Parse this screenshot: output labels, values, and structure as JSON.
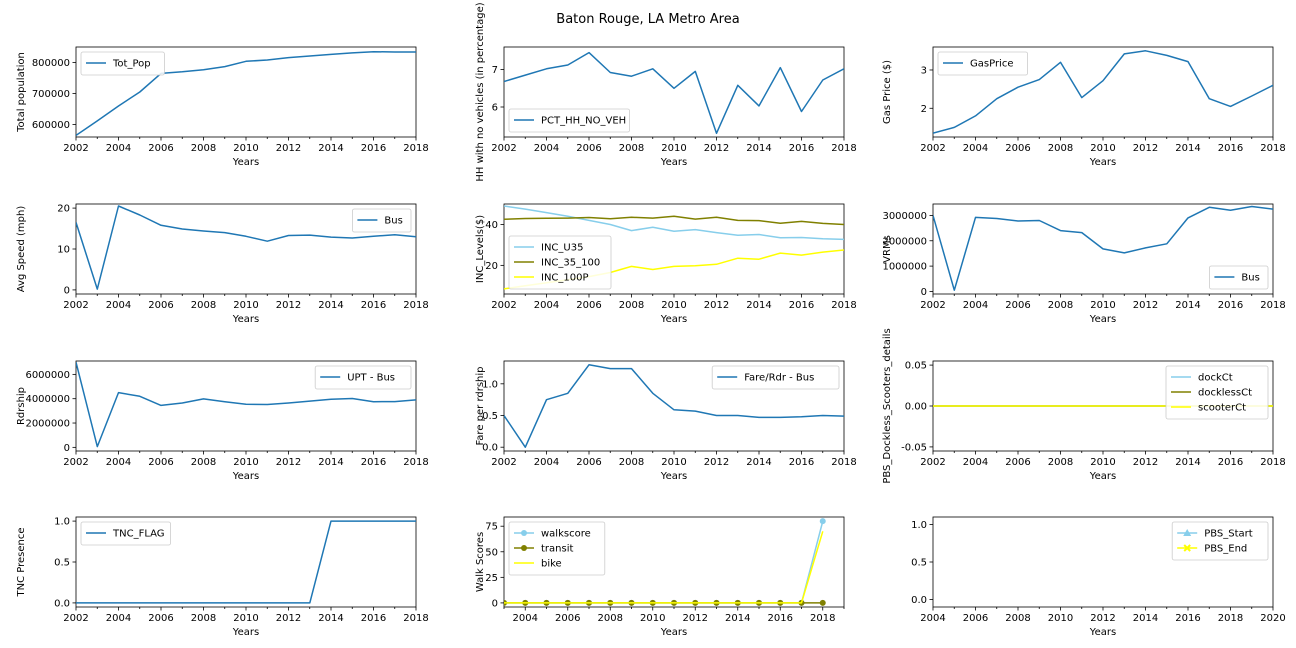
{
  "title": "Baton Rouge, LA Metro Area",
  "colors": {
    "blue": "#1f77b4",
    "skyblue": "#87ceeb",
    "olive": "#808000",
    "yellow": "#ffff00"
  },
  "chart_data": [
    {
      "type": "line",
      "xlabel": "Years",
      "ylabel": "Total population",
      "xlim": [
        2002,
        2018
      ],
      "ylim": [
        560000,
        850000
      ],
      "xticks": [
        2002,
        2004,
        2006,
        2008,
        2010,
        2012,
        2014,
        2016,
        2018
      ],
      "yticks": [
        600000,
        700000,
        800000
      ],
      "legend_position": "upper-left",
      "series": [
        {
          "name": "Tot_Pop",
          "color": "blue",
          "x": [
            2002,
            2003,
            2004,
            2005,
            2006,
            2007,
            2008,
            2009,
            2010,
            2011,
            2012,
            2013,
            2014,
            2015,
            2016,
            2017,
            2018
          ],
          "y": [
            565000,
            612000,
            660000,
            705000,
            765000,
            770000,
            777000,
            787000,
            804000,
            808000,
            816000,
            821000,
            826000,
            831000,
            835000,
            834000,
            834000
          ]
        }
      ]
    },
    {
      "type": "line",
      "xlabel": "Years",
      "ylabel": "HH with no vehicles (in percentage)",
      "xlim": [
        2002,
        2018
      ],
      "ylim": [
        5.2,
        7.6
      ],
      "xticks": [
        2002,
        2004,
        2006,
        2008,
        2010,
        2012,
        2014,
        2016,
        2018
      ],
      "yticks": [
        6,
        7
      ],
      "legend_position": "lower-left",
      "series": [
        {
          "name": "PCT_HH_NO_VEH",
          "color": "blue",
          "x": [
            2002,
            2003,
            2004,
            2005,
            2006,
            2007,
            2008,
            2009,
            2010,
            2011,
            2012,
            2013,
            2014,
            2015,
            2016,
            2017,
            2018
          ],
          "y": [
            6.68,
            6.85,
            7.02,
            7.12,
            7.45,
            6.92,
            6.82,
            7.02,
            6.5,
            6.95,
            5.3,
            6.58,
            6.03,
            7.05,
            5.88,
            6.72,
            7.02
          ]
        }
      ]
    },
    {
      "type": "line",
      "xlabel": "Years",
      "ylabel": "Gas Price ($)",
      "xlim": [
        2002,
        2018
      ],
      "ylim": [
        1.25,
        3.6
      ],
      "xticks": [
        2002,
        2004,
        2006,
        2008,
        2010,
        2012,
        2014,
        2016,
        2018
      ],
      "yticks": [
        2,
        3
      ],
      "legend_position": "upper-left",
      "series": [
        {
          "name": "GasPrice",
          "color": "blue",
          "x": [
            2002,
            2003,
            2004,
            2005,
            2006,
            2007,
            2008,
            2009,
            2010,
            2011,
            2012,
            2013,
            2014,
            2015,
            2016,
            2017,
            2018
          ],
          "y": [
            1.35,
            1.5,
            1.8,
            2.25,
            2.55,
            2.75,
            3.2,
            2.28,
            2.72,
            3.42,
            3.5,
            3.38,
            3.22,
            2.25,
            2.05,
            2.32,
            2.6
          ]
        }
      ]
    },
    {
      "type": "line",
      "xlabel": "Years",
      "ylabel": "Avg Speed (mph)",
      "xlim": [
        2002,
        2018
      ],
      "ylim": [
        -1,
        21
      ],
      "xticks": [
        2002,
        2004,
        2006,
        2008,
        2010,
        2012,
        2014,
        2016,
        2018
      ],
      "yticks": [
        0,
        10,
        20
      ],
      "legend_position": "upper-right",
      "series": [
        {
          "name": "Bus",
          "color": "blue",
          "x": [
            2002,
            2003,
            2004,
            2005,
            2006,
            2007,
            2008,
            2009,
            2010,
            2011,
            2012,
            2013,
            2014,
            2015,
            2016,
            2017,
            2018
          ],
          "y": [
            16.5,
            0.2,
            20.5,
            18.3,
            15.8,
            14.9,
            14.4,
            14.0,
            13.1,
            11.9,
            13.3,
            13.4,
            12.9,
            12.7,
            13.1,
            13.5,
            13.0
          ]
        }
      ]
    },
    {
      "type": "line",
      "xlabel": "Years",
      "ylabel": "INC_Levels($)",
      "xlim": [
        2002,
        2018
      ],
      "ylim": [
        6,
        50
      ],
      "xticks": [
        2002,
        2004,
        2006,
        2008,
        2010,
        2012,
        2014,
        2016,
        2018
      ],
      "yticks": [
        20,
        40
      ],
      "legend_position": "lower-left",
      "series": [
        {
          "name": "INC_U35",
          "color": "skyblue",
          "x": [
            2002,
            2003,
            2004,
            2005,
            2006,
            2007,
            2008,
            2009,
            2010,
            2011,
            2012,
            2013,
            2014,
            2015,
            2016,
            2017,
            2018
          ],
          "y": [
            49,
            47.5,
            45.8,
            44,
            42,
            40,
            37,
            38.6,
            36.7,
            37.5,
            36,
            34.7,
            35.1,
            33.5,
            33.6,
            33,
            32.7
          ]
        },
        {
          "name": "INC_35_100",
          "color": "olive",
          "x": [
            2002,
            2003,
            2004,
            2005,
            2006,
            2007,
            2008,
            2009,
            2010,
            2011,
            2012,
            2013,
            2014,
            2015,
            2016,
            2017,
            2018
          ],
          "y": [
            42.5,
            42.9,
            43,
            43.1,
            43.4,
            42.8,
            43.5,
            43.1,
            44,
            42.6,
            43.5,
            42,
            41.9,
            40.6,
            41.5,
            40.5,
            40
          ]
        },
        {
          "name": "INC_100P",
          "color": "yellow",
          "x": [
            2002,
            2003,
            2004,
            2005,
            2006,
            2007,
            2008,
            2009,
            2010,
            2011,
            2012,
            2013,
            2014,
            2015,
            2016,
            2017,
            2018
          ],
          "y": [
            8.5,
            10,
            11.5,
            13,
            14.5,
            16.5,
            19.5,
            18,
            19.5,
            19.8,
            20.5,
            23.5,
            23,
            26,
            25,
            26.5,
            27.5
          ]
        }
      ]
    },
    {
      "type": "line",
      "xlabel": "Years",
      "ylabel": "VRMs",
      "xlim": [
        2002,
        2018
      ],
      "ylim": [
        -100000,
        3450000
      ],
      "xticks": [
        2002,
        2004,
        2006,
        2008,
        2010,
        2012,
        2014,
        2016,
        2018
      ],
      "yticks": [
        0,
        1000000,
        2000000,
        3000000
      ],
      "legend_position": "lower-right",
      "series": [
        {
          "name": "Bus",
          "color": "blue",
          "x": [
            2002,
            2003,
            2004,
            2005,
            2006,
            2007,
            2008,
            2009,
            2010,
            2011,
            2012,
            2013,
            2014,
            2015,
            2016,
            2017,
            2018
          ],
          "y": [
            3000000,
            50000,
            2920000,
            2880000,
            2780000,
            2800000,
            2400000,
            2320000,
            1680000,
            1520000,
            1720000,
            1880000,
            2900000,
            3320000,
            3200000,
            3350000,
            3250000
          ]
        }
      ]
    },
    {
      "type": "line",
      "xlabel": "Years",
      "ylabel": "Rdrship",
      "xlim": [
        2002,
        2018
      ],
      "ylim": [
        -300000,
        7100000
      ],
      "xticks": [
        2002,
        2004,
        2006,
        2008,
        2010,
        2012,
        2014,
        2016,
        2018
      ],
      "yticks": [
        0,
        2000000,
        4000000,
        6000000
      ],
      "legend_position": "upper-right",
      "series": [
        {
          "name": "UPT - Bus",
          "color": "blue",
          "x": [
            2002,
            2003,
            2004,
            2005,
            2006,
            2007,
            2008,
            2009,
            2010,
            2011,
            2012,
            2013,
            2014,
            2015,
            2016,
            2017,
            2018
          ],
          "y": [
            7000000,
            60000,
            4500000,
            4200000,
            3450000,
            3650000,
            3980000,
            3750000,
            3550000,
            3520000,
            3650000,
            3800000,
            3950000,
            4020000,
            3750000,
            3760000,
            3900000
          ]
        }
      ]
    },
    {
      "type": "line",
      "xlabel": "Years",
      "ylabel": "Fare per rdrship",
      "xlim": [
        2002,
        2018
      ],
      "ylim": [
        -0.06,
        1.36
      ],
      "xticks": [
        2002,
        2004,
        2006,
        2008,
        2010,
        2012,
        2014,
        2016,
        2018
      ],
      "yticks": [
        0.0,
        0.5,
        1.0
      ],
      "legend_position": "upper-right",
      "series": [
        {
          "name": "Fare/Rdr - Bus",
          "color": "blue",
          "x": [
            2002,
            2003,
            2004,
            2005,
            2006,
            2007,
            2008,
            2009,
            2010,
            2011,
            2012,
            2013,
            2014,
            2015,
            2016,
            2017,
            2018
          ],
          "y": [
            0.5,
            0.0,
            0.75,
            0.85,
            1.3,
            1.24,
            1.24,
            0.85,
            0.59,
            0.57,
            0.5,
            0.5,
            0.47,
            0.47,
            0.48,
            0.5,
            0.49
          ]
        }
      ]
    },
    {
      "type": "line",
      "xlabel": "Years",
      "ylabel": "PBS_Dockless_Scooters_details",
      "xlim": [
        2002,
        2018
      ],
      "ylim": [
        -0.055,
        0.055
      ],
      "xticks": [
        2002,
        2004,
        2006,
        2008,
        2010,
        2012,
        2014,
        2016,
        2018
      ],
      "yticks": [
        -0.05,
        0.0,
        0.05
      ],
      "legend_position": "upper-right",
      "series": [
        {
          "name": "dockCt",
          "color": "skyblue",
          "x": [
            2002,
            2003,
            2004,
            2005,
            2006,
            2007,
            2008,
            2009,
            2010,
            2011,
            2012,
            2013,
            2014,
            2015,
            2016,
            2017,
            2018
          ],
          "y": [
            0,
            0,
            0,
            0,
            0,
            0,
            0,
            0,
            0,
            0,
            0,
            0,
            0,
            0,
            0,
            0,
            0
          ]
        },
        {
          "name": "docklessCt",
          "color": "olive",
          "x": [
            2002,
            2003,
            2004,
            2005,
            2006,
            2007,
            2008,
            2009,
            2010,
            2011,
            2012,
            2013,
            2014,
            2015,
            2016,
            2017,
            2018
          ],
          "y": [
            0,
            0,
            0,
            0,
            0,
            0,
            0,
            0,
            0,
            0,
            0,
            0,
            0,
            0,
            0,
            0,
            0
          ]
        },
        {
          "name": "scooterCt",
          "color": "yellow",
          "x": [
            2002,
            2003,
            2004,
            2005,
            2006,
            2007,
            2008,
            2009,
            2010,
            2011,
            2012,
            2013,
            2014,
            2015,
            2016,
            2017,
            2018
          ],
          "y": [
            0,
            0,
            0,
            0,
            0,
            0,
            0,
            0,
            0,
            0,
            0,
            0,
            0,
            0,
            0,
            0,
            0
          ]
        }
      ]
    },
    {
      "type": "line",
      "xlabel": "Years",
      "ylabel": "TNC Presence",
      "xlim": [
        2002,
        2018
      ],
      "ylim": [
        -0.05,
        1.05
      ],
      "xticks": [
        2002,
        2004,
        2006,
        2008,
        2010,
        2012,
        2014,
        2016,
        2018
      ],
      "yticks": [
        0.0,
        0.5,
        1.0
      ],
      "legend_position": "upper-left",
      "series": [
        {
          "name": "TNC_FLAG",
          "color": "blue",
          "x": [
            2002,
            2003,
            2004,
            2005,
            2006,
            2007,
            2008,
            2009,
            2010,
            2011,
            2012,
            2013,
            2014,
            2015,
            2016,
            2017,
            2018
          ],
          "y": [
            0,
            0,
            0,
            0,
            0,
            0,
            0,
            0,
            0,
            0,
            0,
            0,
            1,
            1,
            1,
            1,
            1
          ]
        }
      ]
    },
    {
      "type": "line",
      "xlabel": "Years",
      "ylabel": "Walk Scores",
      "xlim": [
        2003,
        2019
      ],
      "ylim": [
        -4,
        84
      ],
      "xticks": [
        2004,
        2006,
        2008,
        2010,
        2012,
        2014,
        2016,
        2018
      ],
      "yticks": [
        0,
        25,
        50,
        75
      ],
      "legend_position": "upper-left",
      "series": [
        {
          "name": "walkscore",
          "color": "skyblue",
          "marker": "circle",
          "x": [
            2003,
            2004,
            2005,
            2006,
            2007,
            2008,
            2009,
            2010,
            2011,
            2012,
            2013,
            2014,
            2015,
            2016,
            2017,
            2018
          ],
          "y": [
            0,
            0,
            0,
            0,
            0,
            0,
            0,
            0,
            0,
            0,
            0,
            0,
            0,
            0,
            0,
            80
          ]
        },
        {
          "name": "transit",
          "color": "olive",
          "marker": "circle",
          "x": [
            2003,
            2004,
            2005,
            2006,
            2007,
            2008,
            2009,
            2010,
            2011,
            2012,
            2013,
            2014,
            2015,
            2016,
            2017,
            2018
          ],
          "y": [
            0,
            0,
            0,
            0,
            0,
            0,
            0,
            0,
            0,
            0,
            0,
            0,
            0,
            0,
            0,
            0
          ]
        },
        {
          "name": "bike",
          "color": "yellow",
          "marker": "none",
          "x": [
            2003,
            2004,
            2005,
            2006,
            2007,
            2008,
            2009,
            2010,
            2011,
            2012,
            2013,
            2014,
            2015,
            2016,
            2017,
            2018
          ],
          "y": [
            0,
            0,
            0,
            0,
            0,
            0,
            0,
            0,
            0,
            0,
            0,
            0,
            0,
            0,
            0,
            70
          ]
        }
      ]
    },
    {
      "type": "line",
      "xlabel": "Years",
      "ylabel": "",
      "xlim": [
        2004,
        2020
      ],
      "ylim": [
        -0.1,
        1.1
      ],
      "xticks": [
        2004,
        2006,
        2008,
        2010,
        2012,
        2014,
        2016,
        2018,
        2020
      ],
      "yticks": [
        0.0,
        0.5,
        1.0
      ],
      "legend_position": "upper-right",
      "series": [
        {
          "name": "PBS_Start",
          "color": "skyblue",
          "marker": "triangle",
          "x": [],
          "y": []
        },
        {
          "name": "PBS_End",
          "color": "yellow",
          "marker": "x",
          "x": [],
          "y": []
        }
      ]
    }
  ]
}
